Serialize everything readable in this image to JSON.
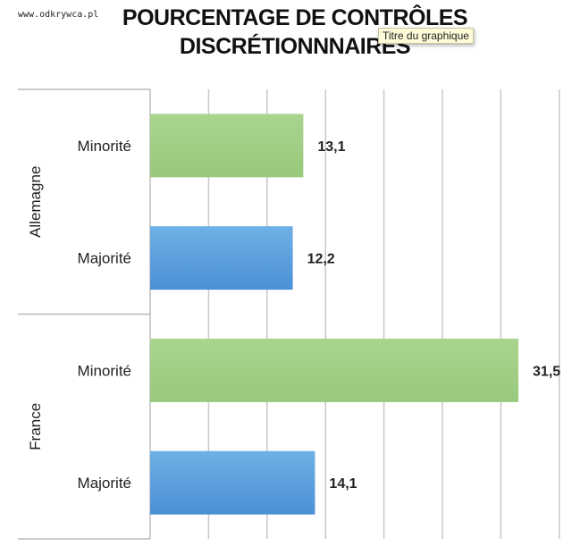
{
  "watermark": "www.odkrywca.pl",
  "tooltip": "Titre du graphique",
  "chart_data": {
    "type": "bar",
    "orientation": "horizontal",
    "title_lines": [
      "POURCENTAGE DE CONTRÔLES",
      "DISCRÉTIONNNAIRES"
    ],
    "groups": [
      {
        "name": "Allemagne",
        "bars": [
          {
            "label": "Minorité",
            "value": 13.1,
            "value_label": "13,1",
            "color": "#9fce84"
          },
          {
            "label": "Majorité",
            "value": 12.2,
            "value_label": "12,2",
            "color": "#5a9fdc"
          }
        ]
      },
      {
        "name": "France",
        "bars": [
          {
            "label": "Minorité",
            "value": 31.5,
            "value_label": "31,5",
            "color": "#9fce84"
          },
          {
            "label": "Majorité",
            "value": 14.1,
            "value_label": "14,1",
            "color": "#5a9fdc"
          }
        ]
      }
    ],
    "xlim": [
      0,
      35
    ],
    "grid_step": 5,
    "grid": true,
    "legend": "none"
  }
}
